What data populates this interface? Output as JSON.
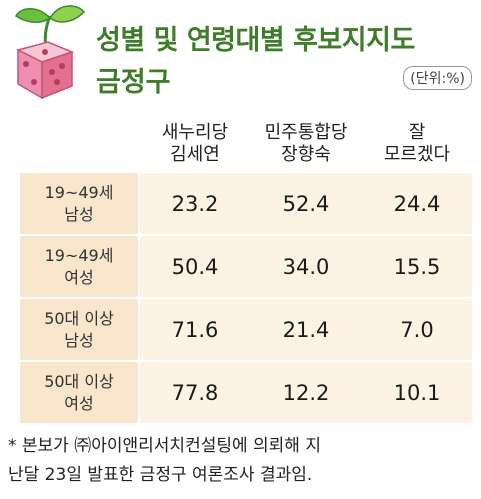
{
  "title": "성별 및 연령대별 후보지지도",
  "subtitle": "금정구",
  "unit": "(단위:%)",
  "colors": {
    "title": "#3f7d2a",
    "row_label_bg": "#f9e6cc",
    "row_value_bg": "#fdf3e4"
  },
  "chart_data": {
    "type": "table",
    "title": "성별 및 연령대별 후보지지도",
    "subtitle": "금정구",
    "unit": "(단위:%)",
    "columns": [
      "새누리당\n김세연",
      "민주통합당\n장향숙",
      "잘\n모르겠다"
    ],
    "rows": [
      {
        "label": "19~49세\n남성",
        "values": [
          23.2,
          52.4,
          24.4
        ],
        "display": [
          "23.2",
          "52.4",
          "24.4"
        ]
      },
      {
        "label": "19~49세\n여성",
        "values": [
          50.4,
          34.0,
          15.5
        ],
        "display": [
          "50.4",
          "34.0",
          "15.5"
        ]
      },
      {
        "label": "50대 이상\n남성",
        "values": [
          71.6,
          21.4,
          7.0
        ],
        "display": [
          "71.6",
          "21.4",
          "7.0"
        ]
      },
      {
        "label": "50대 이상\n여성",
        "values": [
          77.8,
          12.2,
          10.1
        ],
        "display": [
          "77.8",
          "12.2",
          "10.1"
        ]
      }
    ]
  },
  "note": "* 본보가 ㈜아이앤리서치컨설팅에 의뢰해 지\n난달 23일 발표한 금정구 여론조사 결과임."
}
